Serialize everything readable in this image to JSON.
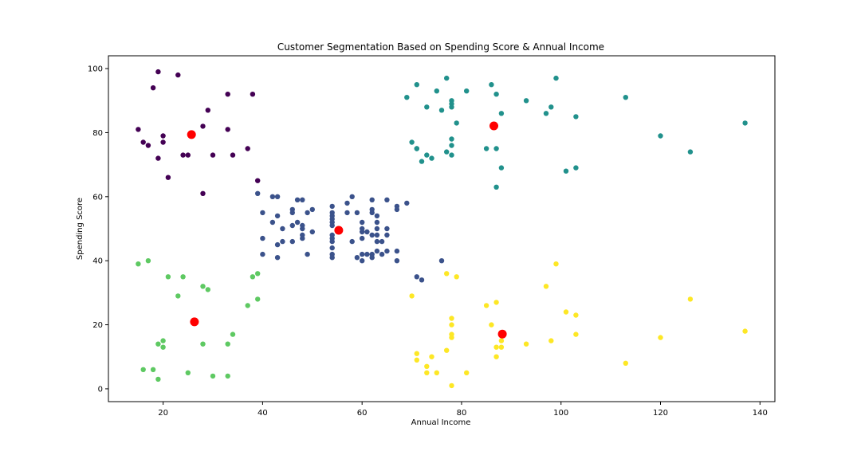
{
  "chart_data": {
    "type": "scatter",
    "title": "Customer Segmentation Based on Spending Score & Annual Income",
    "xlabel": "Annual Income",
    "ylabel": "Spending Score",
    "xlim": [
      9,
      143
    ],
    "ylim": [
      -4,
      104
    ],
    "xticks": [
      20,
      40,
      60,
      80,
      100,
      120,
      140
    ],
    "yticks": [
      0,
      20,
      40,
      60,
      80,
      100
    ],
    "grid": false,
    "series": [
      {
        "color": "#440154",
        "points": [
          [
            15,
            81
          ],
          [
            16,
            77
          ],
          [
            17,
            76
          ],
          [
            18,
            94
          ],
          [
            19,
            72
          ],
          [
            19,
            99
          ],
          [
            20,
            77
          ],
          [
            20,
            79
          ],
          [
            21,
            66
          ],
          [
            23,
            98
          ],
          [
            24,
            73
          ],
          [
            25,
            73
          ],
          [
            28,
            82
          ],
          [
            28,
            61
          ],
          [
            29,
            87
          ],
          [
            30,
            73
          ],
          [
            33,
            92
          ],
          [
            33,
            81
          ],
          [
            34,
            73
          ],
          [
            37,
            75
          ],
          [
            38,
            92
          ],
          [
            39,
            65
          ]
        ]
      },
      {
        "color": "#3b528b",
        "points": [
          [
            39,
            61
          ],
          [
            40,
            55
          ],
          [
            40,
            47
          ],
          [
            40,
            42
          ],
          [
            42,
            52
          ],
          [
            42,
            60
          ],
          [
            43,
            54
          ],
          [
            43,
            60
          ],
          [
            43,
            45
          ],
          [
            43,
            41
          ],
          [
            44,
            50
          ],
          [
            44,
            46
          ],
          [
            46,
            51
          ],
          [
            46,
            46
          ],
          [
            46,
            56
          ],
          [
            46,
            55
          ],
          [
            47,
            52
          ],
          [
            47,
            59
          ],
          [
            48,
            51
          ],
          [
            48,
            59
          ],
          [
            48,
            50
          ],
          [
            48,
            48
          ],
          [
            48,
            47
          ],
          [
            49,
            55
          ],
          [
            49,
            42
          ],
          [
            50,
            49
          ],
          [
            50,
            56
          ],
          [
            54,
            47
          ],
          [
            54,
            54
          ],
          [
            54,
            53
          ],
          [
            54,
            48
          ],
          [
            54,
            52
          ],
          [
            54,
            42
          ],
          [
            54,
            51
          ],
          [
            54,
            55
          ],
          [
            54,
            41
          ],
          [
            54,
            44
          ],
          [
            54,
            57
          ],
          [
            54,
            46
          ],
          [
            57,
            58
          ],
          [
            57,
            55
          ],
          [
            58,
            60
          ],
          [
            58,
            46
          ],
          [
            59,
            55
          ],
          [
            59,
            41
          ],
          [
            60,
            49
          ],
          [
            60,
            40
          ],
          [
            60,
            42
          ],
          [
            60,
            52
          ],
          [
            60,
            47
          ],
          [
            60,
            50
          ],
          [
            61,
            42
          ],
          [
            61,
            49
          ],
          [
            62,
            41
          ],
          [
            62,
            48
          ],
          [
            62,
            59
          ],
          [
            62,
            55
          ],
          [
            62,
            56
          ],
          [
            62,
            42
          ],
          [
            63,
            50
          ],
          [
            63,
            46
          ],
          [
            63,
            43
          ],
          [
            63,
            48
          ],
          [
            63,
            52
          ],
          [
            63,
            54
          ],
          [
            64,
            42
          ],
          [
            64,
            46
          ],
          [
            65,
            48
          ],
          [
            65,
            50
          ],
          [
            65,
            43
          ],
          [
            65,
            59
          ],
          [
            67,
            43
          ],
          [
            67,
            57
          ],
          [
            67,
            56
          ],
          [
            67,
            40
          ],
          [
            69,
            58
          ],
          [
            71,
            35
          ],
          [
            72,
            34
          ],
          [
            76,
            40
          ]
        ]
      },
      {
        "color": "#21918c",
        "points": [
          [
            69,
            91
          ],
          [
            70,
            77
          ],
          [
            71,
            95
          ],
          [
            71,
            75
          ],
          [
            71,
            75
          ],
          [
            72,
            71
          ],
          [
            73,
            88
          ],
          [
            73,
            73
          ],
          [
            74,
            72
          ],
          [
            75,
            93
          ],
          [
            76,
            87
          ],
          [
            77,
            97
          ],
          [
            77,
            74
          ],
          [
            78,
            90
          ],
          [
            78,
            88
          ],
          [
            78,
            76
          ],
          [
            78,
            89
          ],
          [
            78,
            78
          ],
          [
            78,
            73
          ],
          [
            79,
            83
          ],
          [
            81,
            93
          ],
          [
            85,
            75
          ],
          [
            86,
            95
          ],
          [
            87,
            63
          ],
          [
            87,
            75
          ],
          [
            87,
            92
          ],
          [
            88,
            86
          ],
          [
            88,
            69
          ],
          [
            93,
            90
          ],
          [
            97,
            86
          ],
          [
            98,
            88
          ],
          [
            99,
            97
          ],
          [
            101,
            68
          ],
          [
            103,
            85
          ],
          [
            103,
            69
          ],
          [
            113,
            91
          ],
          [
            120,
            79
          ],
          [
            126,
            74
          ],
          [
            137,
            83
          ]
        ]
      },
      {
        "color": "#5ec962",
        "points": [
          [
            15,
            39
          ],
          [
            16,
            6
          ],
          [
            17,
            40
          ],
          [
            18,
            6
          ],
          [
            19,
            3
          ],
          [
            19,
            14
          ],
          [
            20,
            15
          ],
          [
            20,
            13
          ],
          [
            21,
            35
          ],
          [
            23,
            29
          ],
          [
            24,
            35
          ],
          [
            25,
            5
          ],
          [
            28,
            14
          ],
          [
            28,
            32
          ],
          [
            29,
            31
          ],
          [
            30,
            4
          ],
          [
            33,
            4
          ],
          [
            33,
            14
          ],
          [
            34,
            17
          ],
          [
            37,
            26
          ],
          [
            38,
            35
          ],
          [
            39,
            36
          ],
          [
            39,
            28
          ]
        ]
      },
      {
        "color": "#fde725",
        "points": [
          [
            70,
            29
          ],
          [
            71,
            11
          ],
          [
            71,
            9
          ],
          [
            73,
            5
          ],
          [
            73,
            7
          ],
          [
            74,
            10
          ],
          [
            75,
            5
          ],
          [
            77,
            12
          ],
          [
            77,
            36
          ],
          [
            78,
            22
          ],
          [
            78,
            17
          ],
          [
            78,
            20
          ],
          [
            78,
            16
          ],
          [
            78,
            1
          ],
          [
            79,
            35
          ],
          [
            81,
            5
          ],
          [
            85,
            26
          ],
          [
            86,
            20
          ],
          [
            87,
            27
          ],
          [
            87,
            13
          ],
          [
            87,
            10
          ],
          [
            88,
            13
          ],
          [
            88,
            15
          ],
          [
            93,
            14
          ],
          [
            97,
            32
          ],
          [
            98,
            15
          ],
          [
            99,
            39
          ],
          [
            101,
            24
          ],
          [
            103,
            17
          ],
          [
            103,
            23
          ],
          [
            113,
            8
          ],
          [
            120,
            16
          ],
          [
            126,
            28
          ],
          [
            137,
            18
          ]
        ]
      }
    ],
    "centroids": {
      "color": "#ff0000",
      "points": [
        [
          25.7,
          79.4
        ],
        [
          55.3,
          49.5
        ],
        [
          86.5,
          82.1
        ],
        [
          26.3,
          20.9
        ],
        [
          88.2,
          17.1
        ]
      ]
    }
  }
}
